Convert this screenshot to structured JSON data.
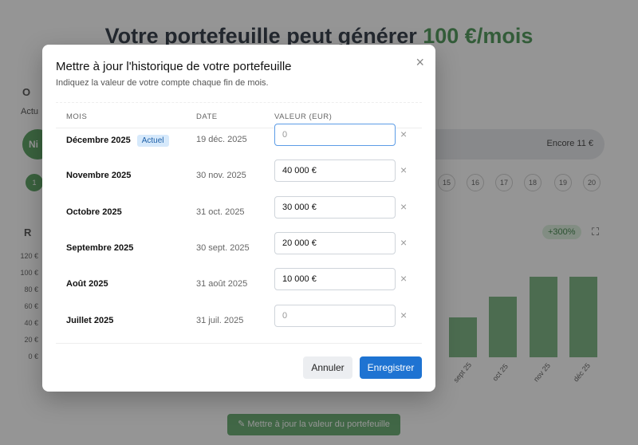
{
  "background": {
    "hero_prefix": "Votre portefeuille peut générer ",
    "hero_amount": "100 €/mois",
    "section_initial": "O",
    "actual_label": "Actu",
    "progress_label": "Ni",
    "progress_remaining": "Encore 11 €",
    "steps": [
      "1",
      "15",
      "16",
      "17",
      "18",
      "19",
      "20"
    ],
    "chart_initial": "R",
    "growth_badge": "+300%",
    "chart_data": {
      "type": "bar",
      "categories": [
        "sept 25",
        "oct 25",
        "nov 25",
        "déc 25"
      ],
      "values": [
        48,
        72,
        96,
        96
      ],
      "yticks": [
        "120 €",
        "100 €",
        "80 €",
        "60 €",
        "40 €",
        "20 €",
        "0 €"
      ],
      "ylim": [
        0,
        120
      ]
    },
    "update_button": "Mettre à jour la valeur du portefeuille"
  },
  "modal": {
    "title": "Mettre à jour l'historique de votre portefeuille",
    "subtitle": "Indiquez la valeur de votre compte chaque fin de mois.",
    "columns": [
      "MOIS",
      "DATE",
      "VALEUR (EUR)"
    ],
    "rows": [
      {
        "month": "Décembre 2025",
        "badge": "Actuel",
        "date": "19 déc. 2025",
        "value": "",
        "placeholder": "0"
      },
      {
        "month": "Novembre 2025",
        "date": "30 nov. 2025",
        "value": "40 000 €",
        "placeholder": "0"
      },
      {
        "month": "Octobre 2025",
        "date": "31 oct. 2025",
        "value": "30 000 €",
        "placeholder": "0"
      },
      {
        "month": "Septembre 2025",
        "date": "30 sept. 2025",
        "value": "20 000 €",
        "placeholder": "0"
      },
      {
        "month": "Août 2025",
        "date": "31 août 2025",
        "value": "10 000 €",
        "placeholder": "0"
      },
      {
        "month": "Juillet 2025",
        "date": "31 juil. 2025",
        "value": "",
        "placeholder": "0"
      }
    ],
    "remove_icon": "×",
    "close_icon": "×",
    "cancel_label": "Annuler",
    "save_label": "Enregistrer"
  }
}
